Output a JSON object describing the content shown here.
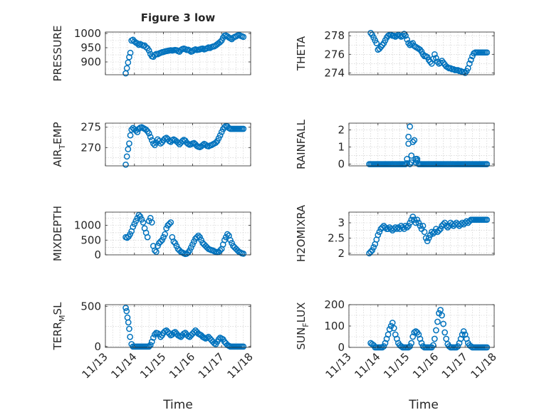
{
  "figure": {
    "title": "Figure 3 low",
    "xlabel": "Time",
    "marker_color": "#0072BD"
  },
  "time_axis": {
    "ticks": [
      0,
      1,
      2,
      3,
      4,
      5
    ],
    "tick_labels": [
      "11/13",
      "11/14",
      "11/15",
      "11/16",
      "11/17",
      "11/18"
    ],
    "range": [
      0,
      5
    ],
    "unit": "days from 11/13"
  },
  "chart_data": [
    {
      "type": "scatter",
      "ylabel": "PRESSURE",
      "ylim": [
        855,
        1005
      ],
      "yticks": [
        900,
        950,
        1000
      ],
      "grid": true,
      "x": [
        0.7,
        0.74,
        0.78,
        0.82,
        0.86,
        0.9,
        0.95,
        1.0,
        1.05,
        1.1,
        1.15,
        1.2,
        1.25,
        1.3,
        1.35,
        1.4,
        1.45,
        1.5,
        1.55,
        1.6,
        1.65,
        1.7,
        1.75,
        1.8,
        1.85,
        1.9,
        1.95,
        2.0,
        2.05,
        2.1,
        2.15,
        2.2,
        2.25,
        2.3,
        2.35,
        2.4,
        2.45,
        2.5,
        2.55,
        2.6,
        2.65,
        2.7,
        2.75,
        2.8,
        2.85,
        2.9,
        2.95,
        3.0,
        3.05,
        3.1,
        3.15,
        3.2,
        3.25,
        3.3,
        3.35,
        3.4,
        3.45,
        3.5,
        3.55,
        3.6,
        3.65,
        3.7,
        3.75,
        3.8,
        3.85,
        3.9,
        3.95,
        4.0,
        4.05,
        4.1,
        4.15,
        4.2,
        4.25,
        4.3,
        4.35,
        4.4,
        4.45,
        4.5,
        4.55,
        4.6,
        4.65,
        4.7,
        4.75
      ],
      "y": [
        860,
        878,
        898,
        917,
        932,
        975,
        978,
        972,
        968,
        965,
        960,
        963,
        960,
        957,
        958,
        952,
        948,
        940,
        928,
        920,
        918,
        924,
        928,
        927,
        930,
        932,
        934,
        935,
        937,
        938,
        939,
        940,
        941,
        940,
        941,
        942,
        941,
        938,
        936,
        942,
        945,
        947,
        945,
        942,
        943,
        940,
        936,
        938,
        942,
        944,
        942,
        943,
        944,
        946,
        947,
        944,
        946,
        948,
        951,
        949,
        952,
        954,
        955,
        958,
        962,
        966,
        970,
        975,
        985,
        992,
        993,
        990,
        986,
        983,
        980,
        985,
        988,
        990,
        993,
        995,
        992,
        990,
        988
      ]
    },
    {
      "type": "scatter",
      "ylabel": "THETA",
      "ylim": [
        273.8,
        278.4
      ],
      "yticks": [
        274,
        276,
        278
      ],
      "grid": true,
      "x": [
        0.75,
        0.8,
        0.85,
        0.9,
        0.95,
        1.0,
        1.05,
        1.1,
        1.15,
        1.2,
        1.25,
        1.3,
        1.35,
        1.4,
        1.45,
        1.5,
        1.55,
        1.6,
        1.65,
        1.7,
        1.75,
        1.8,
        1.85,
        1.9,
        1.95,
        2.0,
        2.05,
        2.1,
        2.15,
        2.2,
        2.25,
        2.3,
        2.35,
        2.4,
        2.45,
        2.5,
        2.55,
        2.6,
        2.65,
        2.7,
        2.75,
        2.8,
        2.85,
        2.9,
        2.95,
        3.0,
        3.05,
        3.1,
        3.15,
        3.2,
        3.25,
        3.3,
        3.35,
        3.4,
        3.45,
        3.5,
        3.55,
        3.6,
        3.65,
        3.7,
        3.75,
        3.8,
        3.85,
        3.9,
        3.95,
        4.0,
        4.05,
        4.1,
        4.15,
        4.2,
        4.25,
        4.3,
        4.35,
        4.4,
        4.45,
        4.5,
        4.55,
        4.6,
        4.65,
        4.7,
        4.75
      ],
      "y": [
        278.3,
        278.1,
        277.8,
        277.5,
        277.2,
        276.5,
        276.6,
        276.8,
        277.0,
        277.2,
        277.5,
        277.8,
        278.0,
        278.1,
        278.1,
        278.0,
        278.0,
        277.9,
        278.0,
        278.1,
        278.0,
        277.9,
        278.0,
        278.2,
        278.0,
        277.6,
        277.2,
        277.0,
        277.1,
        277.2,
        276.9,
        276.8,
        276.7,
        276.6,
        276.5,
        276.3,
        276.0,
        275.8,
        275.8,
        275.7,
        275.4,
        275.2,
        275.0,
        275.5,
        276.0,
        275.6,
        275.2,
        275.0,
        275.1,
        275.3,
        275.1,
        274.9,
        274.7,
        274.6,
        274.5,
        274.5,
        274.4,
        274.4,
        274.3,
        274.3,
        274.3,
        274.2,
        274.2,
        274.1,
        274.1,
        274.0,
        274.2,
        274.5,
        275.0,
        275.4,
        275.8,
        276.1,
        276.2,
        276.2,
        276.2,
        276.2,
        276.2,
        276.2,
        276.2,
        276.2,
        276.2
      ]
    },
    {
      "type": "scatter",
      "ylabel": "AIR_TEMP",
      "ylim": [
        265.5,
        276
      ],
      "yticks": [
        270,
        275
      ],
      "grid": true,
      "x": [
        0.7,
        0.74,
        0.78,
        0.82,
        0.86,
        0.9,
        0.95,
        1.0,
        1.05,
        1.1,
        1.15,
        1.2,
        1.25,
        1.3,
        1.35,
        1.4,
        1.45,
        1.5,
        1.55,
        1.6,
        1.65,
        1.7,
        1.75,
        1.8,
        1.85,
        1.9,
        1.95,
        2.0,
        2.05,
        2.1,
        2.15,
        2.2,
        2.25,
        2.3,
        2.35,
        2.4,
        2.45,
        2.5,
        2.55,
        2.6,
        2.65,
        2.7,
        2.75,
        2.8,
        2.85,
        2.9,
        2.95,
        3.0,
        3.05,
        3.1,
        3.15,
        3.2,
        3.25,
        3.3,
        3.35,
        3.4,
        3.45,
        3.5,
        3.55,
        3.6,
        3.65,
        3.7,
        3.75,
        3.8,
        3.85,
        3.9,
        3.95,
        4.0,
        4.05,
        4.1,
        4.15,
        4.2,
        4.25,
        4.3,
        4.35,
        4.4,
        4.45,
        4.5,
        4.55,
        4.6,
        4.65,
        4.7,
        4.75
      ],
      "y": [
        265.8,
        267.8,
        269.6,
        271.0,
        273.0,
        274.4,
        274.8,
        274.5,
        274.2,
        273.8,
        274.6,
        274.9,
        275.0,
        274.8,
        274.6,
        274.4,
        274.0,
        273.5,
        272.6,
        271.8,
        271.0,
        270.6,
        271.2,
        272.0,
        271.6,
        271.0,
        271.3,
        271.8,
        272.2,
        272.4,
        272.1,
        271.6,
        271.4,
        271.8,
        272.0,
        271.8,
        271.5,
        271.2,
        270.8,
        271.2,
        271.6,
        271.9,
        271.7,
        271.2,
        270.9,
        270.7,
        270.8,
        271.0,
        271.1,
        270.8,
        270.4,
        270.2,
        270.1,
        270.3,
        270.6,
        270.9,
        270.7,
        270.4,
        270.3,
        270.5,
        270.6,
        270.8,
        271.0,
        271.2,
        271.6,
        272.3,
        273.0,
        273.8,
        274.5,
        275.0,
        275.3,
        275.2,
        274.8,
        274.6,
        274.6,
        274.6,
        274.6,
        274.6,
        274.6,
        274.6,
        274.6,
        274.6,
        274.6
      ]
    },
    {
      "type": "scatter",
      "ylabel": "RAINFALL",
      "ylim": [
        -0.1,
        2.4
      ],
      "yticks": [
        0,
        1,
        2
      ],
      "grid": true,
      "x": [
        0.7,
        0.75,
        0.8,
        0.85,
        0.9,
        0.95,
        1.0,
        1.05,
        1.1,
        1.15,
        1.2,
        1.25,
        1.3,
        1.35,
        1.4,
        1.45,
        1.5,
        1.55,
        1.6,
        1.65,
        1.7,
        1.75,
        1.8,
        1.85,
        1.9,
        1.95,
        2.0,
        2.0,
        2.05,
        2.05,
        2.1,
        2.1,
        2.15,
        2.15,
        2.2,
        2.25,
        2.3,
        2.3,
        2.35,
        2.35,
        2.4,
        2.45,
        2.5,
        2.55,
        2.6,
        2.65,
        2.7,
        2.75,
        2.8,
        2.85,
        2.9,
        2.95,
        3.0,
        3.05,
        3.1,
        3.15,
        3.2,
        3.25,
        3.3,
        3.35,
        3.4,
        3.45,
        3.5,
        3.55,
        3.6,
        3.65,
        3.7,
        3.75,
        3.8,
        3.85,
        3.9,
        3.95,
        4.0,
        4.05,
        4.1,
        4.15,
        4.2,
        4.25,
        4.3,
        4.35,
        4.4,
        4.45,
        4.5,
        4.55,
        4.6,
        4.65,
        4.7,
        4.75
      ],
      "y": [
        0,
        0,
        0,
        0,
        0,
        0,
        0,
        0,
        0,
        0,
        0,
        0,
        0,
        0,
        0,
        0,
        0,
        0,
        0,
        0,
        0,
        0,
        0,
        0,
        0,
        0,
        0.3,
        0.05,
        1.6,
        1.2,
        2.2,
        0,
        0.5,
        0.1,
        1.3,
        1.4,
        0.3,
        0.1,
        0.2,
        0.3,
        0,
        0,
        0,
        0,
        0,
        0,
        0,
        0,
        0,
        0,
        0,
        0,
        0,
        0,
        0,
        0,
        0,
        0,
        0,
        0,
        0,
        0,
        0,
        0,
        0,
        0,
        0,
        0,
        0,
        0,
        0,
        0,
        0,
        0,
        0,
        0,
        0,
        0,
        0,
        0,
        0,
        0,
        0,
        0,
        0,
        0,
        0,
        0
      ]
    },
    {
      "type": "scatter",
      "ylabel": "MIXDEPTH",
      "ylim": [
        0,
        1450
      ],
      "yticks": [
        0,
        500,
        1000
      ],
      "grid": true,
      "x": [
        0.7,
        0.75,
        0.8,
        0.85,
        0.9,
        0.95,
        1.0,
        1.05,
        1.1,
        1.15,
        1.2,
        1.25,
        1.3,
        1.35,
        1.4,
        1.45,
        1.5,
        1.55,
        1.6,
        1.65,
        1.7,
        1.75,
        1.8,
        1.85,
        1.9,
        1.95,
        2.0,
        2.05,
        2.1,
        2.15,
        2.2,
        2.25,
        2.3,
        2.35,
        2.4,
        2.45,
        2.5,
        2.55,
        2.6,
        2.65,
        2.7,
        2.75,
        2.8,
        2.85,
        2.9,
        2.95,
        3.0,
        3.05,
        3.1,
        3.15,
        3.2,
        3.25,
        3.3,
        3.35,
        3.4,
        3.45,
        3.5,
        3.55,
        3.6,
        3.65,
        3.7,
        3.75,
        3.8,
        3.85,
        3.9,
        3.95,
        4.0,
        4.05,
        4.1,
        4.15,
        4.2,
        4.25,
        4.3,
        4.35,
        4.4,
        4.45,
        4.5,
        4.55,
        4.6,
        4.65,
        4.7,
        4.75
      ],
      "y": [
        600,
        580,
        620,
        700,
        800,
        950,
        1050,
        1150,
        1250,
        1350,
        1300,
        1200,
        1100,
        900,
        750,
        600,
        1150,
        1250,
        1100,
        300,
        150,
        100,
        300,
        400,
        450,
        500,
        600,
        700,
        900,
        1000,
        1050,
        1100,
        600,
        450,
        400,
        300,
        200,
        150,
        100,
        80,
        50,
        30,
        40,
        80,
        150,
        250,
        350,
        450,
        550,
        600,
        650,
        600,
        500,
        400,
        350,
        300,
        250,
        200,
        180,
        160,
        150,
        120,
        100,
        90,
        100,
        150,
        200,
        350,
        500,
        600,
        700,
        650,
        500,
        400,
        300,
        250,
        200,
        150,
        100,
        80,
        50,
        40
      ]
    },
    {
      "type": "scatter",
      "ylabel": "H2OMIXRA",
      "ylim": [
        1.95,
        3.35
      ],
      "yticks": [
        2,
        2.5,
        3
      ],
      "grid": true,
      "x": [
        0.7,
        0.75,
        0.8,
        0.85,
        0.9,
        0.95,
        1.0,
        1.05,
        1.1,
        1.15,
        1.2,
        1.25,
        1.3,
        1.35,
        1.4,
        1.45,
        1.5,
        1.55,
        1.6,
        1.65,
        1.7,
        1.75,
        1.8,
        1.85,
        1.9,
        1.95,
        2.0,
        2.05,
        2.1,
        2.15,
        2.2,
        2.25,
        2.3,
        2.35,
        2.4,
        2.45,
        2.5,
        2.55,
        2.6,
        2.65,
        2.7,
        2.75,
        2.8,
        2.85,
        2.9,
        2.95,
        3.0,
        3.05,
        3.1,
        3.15,
        3.2,
        3.25,
        3.3,
        3.35,
        3.4,
        3.45,
        3.5,
        3.55,
        3.6,
        3.65,
        3.7,
        3.75,
        3.8,
        3.85,
        3.9,
        3.95,
        4.0,
        4.05,
        4.1,
        4.15,
        4.2,
        4.25,
        4.3,
        4.35,
        4.4,
        4.45,
        4.5,
        4.55,
        4.6,
        4.65,
        4.7,
        4.75
      ],
      "y": [
        2.0,
        2.05,
        2.1,
        2.2,
        2.3,
        2.45,
        2.6,
        2.7,
        2.8,
        2.85,
        2.9,
        2.85,
        2.8,
        2.8,
        2.85,
        2.8,
        2.75,
        2.8,
        2.85,
        2.8,
        2.85,
        2.8,
        2.9,
        2.85,
        2.8,
        2.9,
        2.85,
        2.9,
        3.0,
        3.1,
        3.2,
        3.1,
        3.0,
        3.1,
        3.0,
        2.9,
        2.8,
        2.9,
        2.7,
        2.5,
        2.4,
        2.5,
        2.6,
        2.7,
        2.65,
        2.7,
        2.8,
        2.7,
        2.75,
        2.8,
        2.9,
        2.95,
        3.0,
        2.9,
        2.85,
        2.9,
        3.0,
        2.95,
        2.9,
        2.95,
        3.0,
        2.95,
        2.9,
        2.95,
        3.0,
        2.95,
        3.0,
        3.05,
        3.0,
        3.05,
        3.1,
        3.1,
        3.1,
        3.1,
        3.1,
        3.1,
        3.1,
        3.1,
        3.1,
        3.1,
        3.1,
        3.1
      ]
    },
    {
      "type": "scatter",
      "ylabel": "TERR_MSL",
      "ylim": [
        -10,
        520
      ],
      "yticks": [
        0,
        500
      ],
      "grid": true,
      "x": [
        0.7,
        0.73,
        0.76,
        0.79,
        0.82,
        0.85,
        0.9,
        0.95,
        1.0,
        1.05,
        1.1,
        1.15,
        1.2,
        1.25,
        1.3,
        1.35,
        1.4,
        1.45,
        1.5,
        1.55,
        1.6,
        1.65,
        1.7,
        1.75,
        1.8,
        1.85,
        1.9,
        1.95,
        2.0,
        2.05,
        2.1,
        2.15,
        2.2,
        2.25,
        2.3,
        2.35,
        2.4,
        2.45,
        2.5,
        2.55,
        2.6,
        2.65,
        2.7,
        2.75,
        2.8,
        2.85,
        2.9,
        2.95,
        3.0,
        3.05,
        3.1,
        3.15,
        3.2,
        3.25,
        3.3,
        3.35,
        3.4,
        3.45,
        3.5,
        3.55,
        3.6,
        3.65,
        3.7,
        3.75,
        3.8,
        3.85,
        3.9,
        3.95,
        4.0,
        4.05,
        4.1,
        4.15,
        4.2,
        4.25,
        4.3,
        4.35,
        4.4,
        4.45,
        4.5,
        4.55,
        4.6,
        4.65,
        4.7,
        4.75
      ],
      "y": [
        480,
        440,
        360,
        300,
        220,
        120,
        30,
        0,
        0,
        0,
        0,
        0,
        0,
        0,
        0,
        0,
        0,
        0,
        0,
        20,
        60,
        110,
        150,
        170,
        165,
        150,
        120,
        140,
        170,
        190,
        200,
        180,
        160,
        140,
        150,
        170,
        180,
        160,
        140,
        130,
        120,
        140,
        160,
        170,
        150,
        130,
        120,
        140,
        160,
        180,
        200,
        180,
        160,
        150,
        140,
        120,
        110,
        100,
        110,
        120,
        100,
        80,
        60,
        40,
        30,
        60,
        90,
        110,
        100,
        90,
        60,
        40,
        20,
        10,
        0,
        0,
        0,
        0,
        0,
        0,
        0,
        0,
        0,
        0
      ]
    },
    {
      "type": "scatter",
      "ylabel": "SUN_FLUX",
      "ylim": [
        0,
        200
      ],
      "yticks": [
        0,
        100,
        200
      ],
      "grid": true,
      "x": [
        0.75,
        0.8,
        0.85,
        0.9,
        0.95,
        1.0,
        1.05,
        1.1,
        1.15,
        1.2,
        1.25,
        1.3,
        1.35,
        1.4,
        1.45,
        1.5,
        1.55,
        1.6,
        1.65,
        1.7,
        1.75,
        1.8,
        1.85,
        1.9,
        1.95,
        2.0,
        2.05,
        2.1,
        2.15,
        2.2,
        2.25,
        2.3,
        2.35,
        2.4,
        2.45,
        2.5,
        2.55,
        2.6,
        2.65,
        2.7,
        2.75,
        2.8,
        2.85,
        2.9,
        2.95,
        3.0,
        3.05,
        3.1,
        3.15,
        3.2,
        3.25,
        3.3,
        3.35,
        3.4,
        3.45,
        3.5,
        3.55,
        3.6,
        3.65,
        3.7,
        3.75,
        3.8,
        3.85,
        3.9,
        3.95,
        4.0,
        4.05,
        4.1,
        4.15,
        4.2,
        4.25,
        4.3,
        4.35,
        4.4,
        4.45,
        4.5,
        4.55,
        4.6,
        4.65,
        4.7,
        4.75
      ],
      "y": [
        20,
        15,
        10,
        0,
        0,
        0,
        0,
        0,
        0,
        5,
        20,
        40,
        60,
        85,
        100,
        115,
        90,
        60,
        40,
        20,
        10,
        5,
        0,
        0,
        0,
        0,
        0,
        5,
        20,
        50,
        70,
        75,
        70,
        60,
        40,
        20,
        5,
        0,
        0,
        0,
        0,
        0,
        0,
        10,
        40,
        80,
        120,
        160,
        175,
        150,
        110,
        70,
        40,
        15,
        5,
        0,
        0,
        0,
        0,
        0,
        5,
        20,
        40,
        60,
        75,
        60,
        40,
        20,
        10,
        5,
        0,
        0,
        0,
        0,
        0,
        0,
        0,
        0,
        0,
        0,
        0
      ]
    }
  ]
}
